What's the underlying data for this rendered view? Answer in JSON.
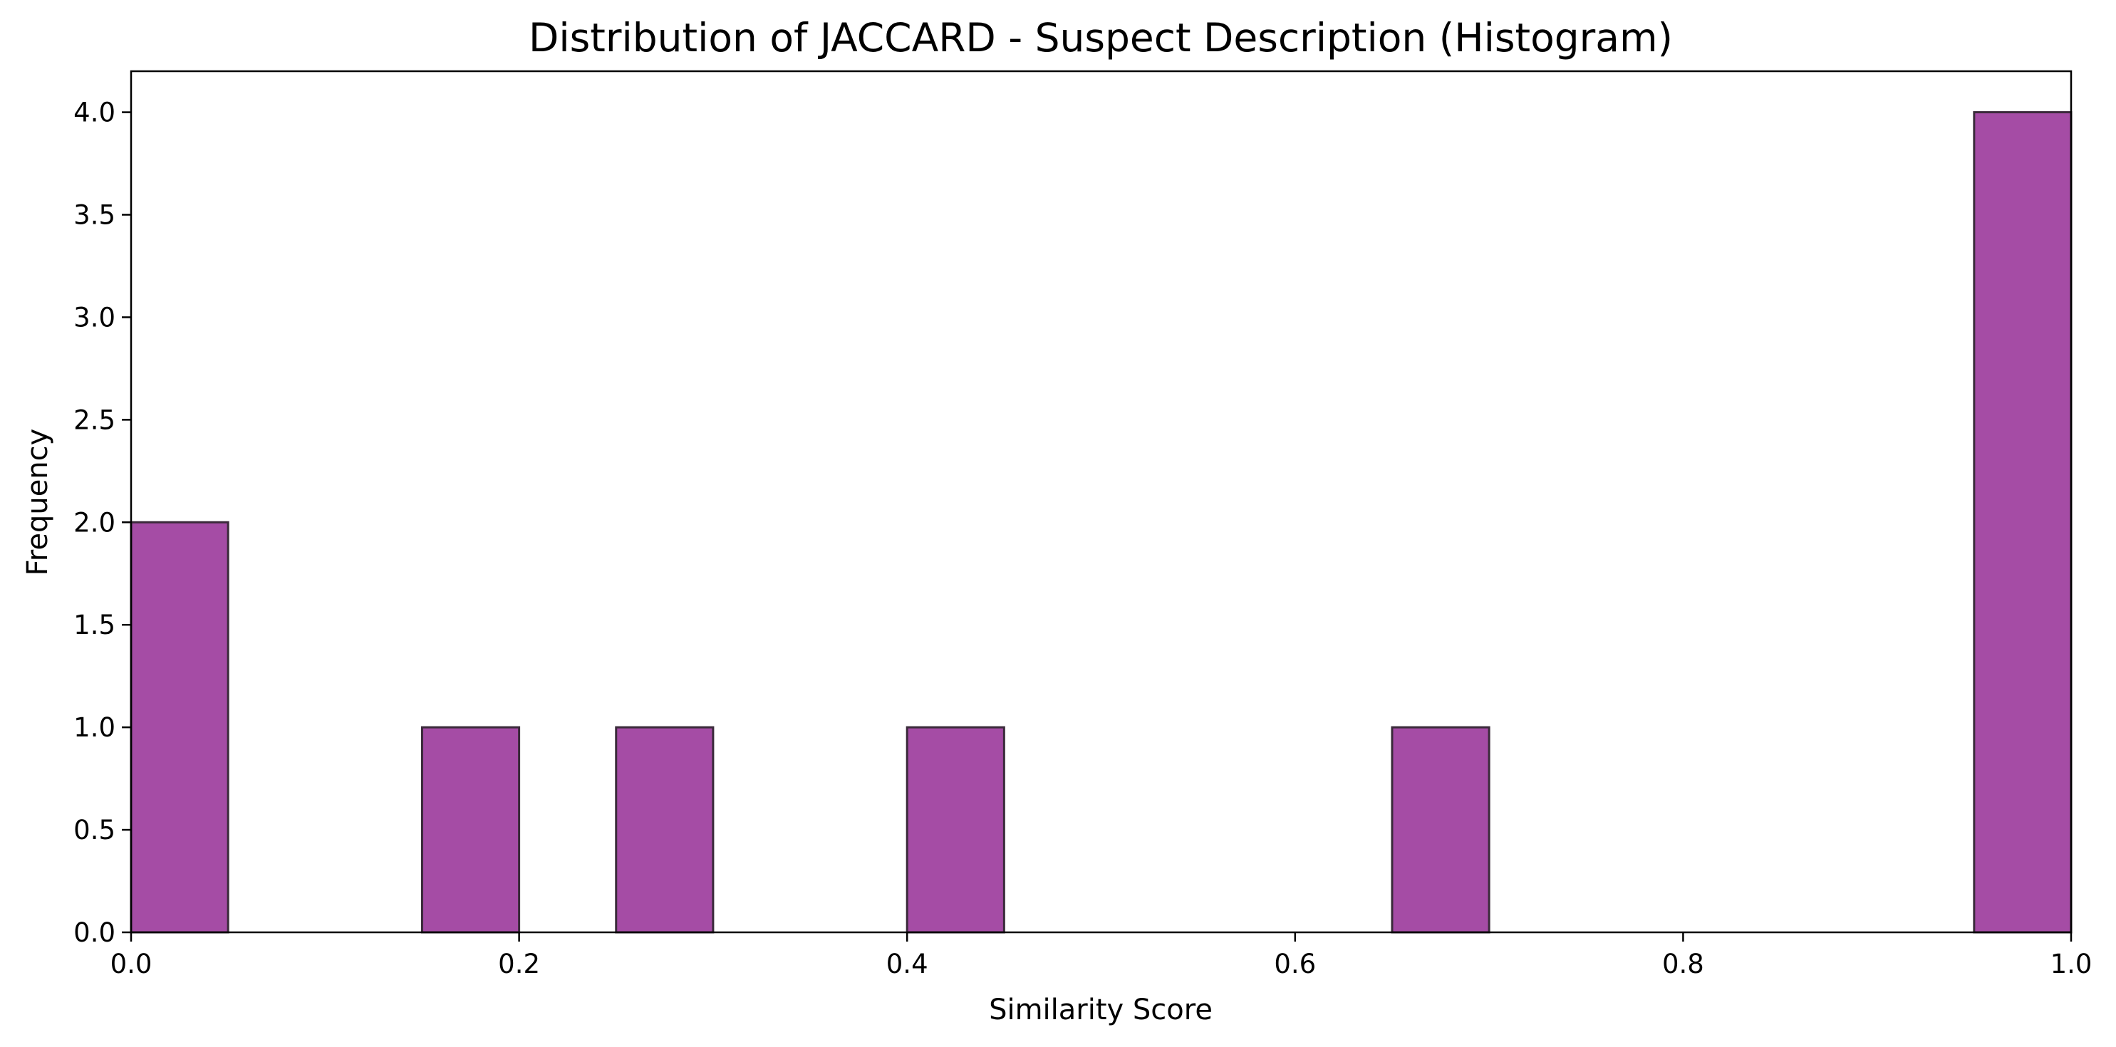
{
  "chart_data": {
    "type": "histogram",
    "title": "Distribution of JACCARD - Suspect Description (Histogram)",
    "xlabel": "Similarity Score",
    "ylabel": "Frequency",
    "xlim": [
      0.0,
      1.0
    ],
    "ylim": [
      0.0,
      4.2
    ],
    "x_ticks": [
      "0.0",
      "0.2",
      "0.4",
      "0.6",
      "0.8",
      "1.0"
    ],
    "y_ticks": [
      "0.0",
      "0.5",
      "1.0",
      "1.5",
      "2.0",
      "2.5",
      "3.0",
      "3.5",
      "4.0"
    ],
    "bin_width": 0.05,
    "bins": [
      {
        "start": 0.0,
        "end": 0.05,
        "count": 2
      },
      {
        "start": 0.15,
        "end": 0.2,
        "count": 1
      },
      {
        "start": 0.25,
        "end": 0.3,
        "count": 1
      },
      {
        "start": 0.4,
        "end": 0.45,
        "count": 1
      },
      {
        "start": 0.65,
        "end": 0.7,
        "count": 1
      },
      {
        "start": 0.95,
        "end": 1.0,
        "count": 4
      }
    ],
    "grid": false,
    "colors": {
      "bar_fill": "#a54ca5",
      "bar_edge": "#3a2a3a"
    }
  }
}
